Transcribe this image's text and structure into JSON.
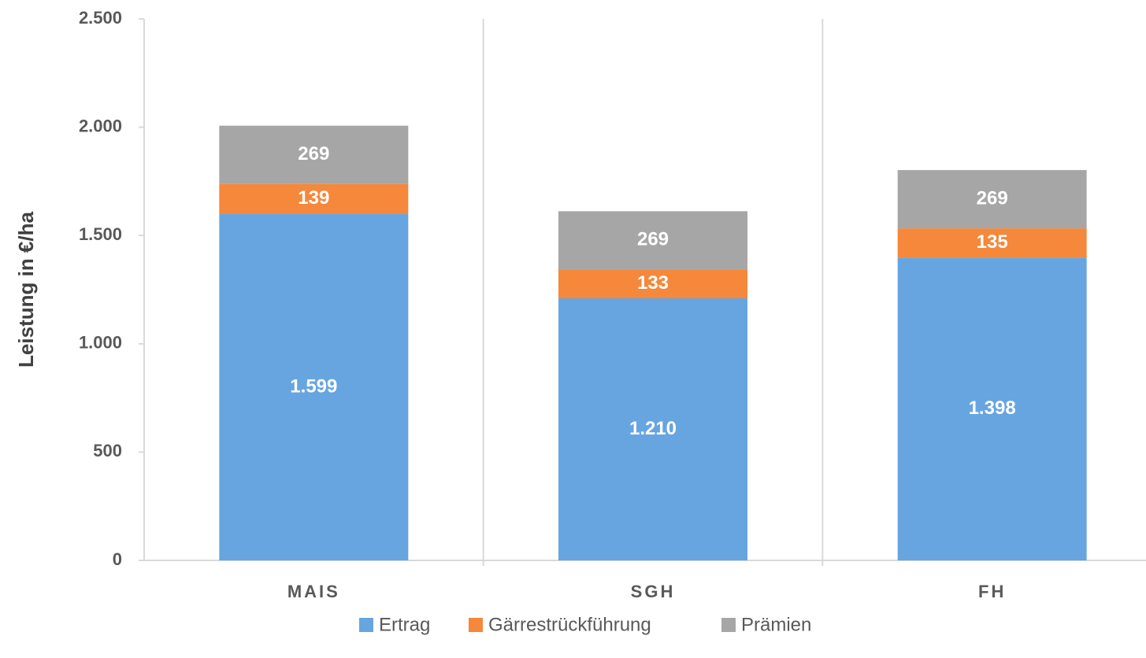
{
  "chart_data": {
    "type": "stacked_bar",
    "y_label": "Leistung in €/ha",
    "categories": [
      "MAIS",
      "SGH",
      "FH"
    ],
    "series": [
      {
        "name": "Ertrag",
        "color": "#67a5e0",
        "values": [
          1599,
          1210,
          1398
        ],
        "value_labels": [
          "1.599",
          "1.210",
          "1.398"
        ]
      },
      {
        "name": "Gärrestrückführung",
        "color": "#f5883a",
        "values": [
          139,
          133,
          135
        ]
      },
      {
        "name": "Prämien",
        "color": "#a6a6a6",
        "values": [
          269,
          269,
          269
        ]
      }
    ],
    "ylim": [
      0,
      2500
    ],
    "yticks": [
      0,
      500,
      {
        "value": 1000,
        "label": "1.000"
      },
      {
        "value": 1500,
        "label": "1.500"
      },
      {
        "value": 2000,
        "label": "2.000"
      },
      {
        "value": 2500,
        "label": "2.500"
      }
    ],
    "legend": "bottom"
  }
}
